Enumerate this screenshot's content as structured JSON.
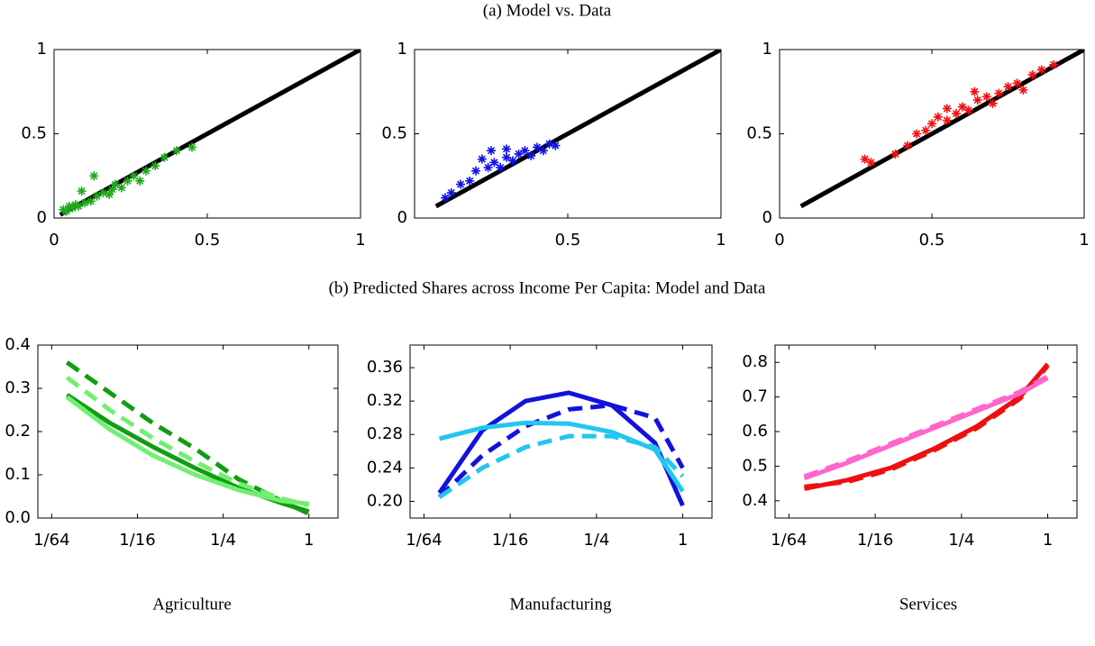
{
  "section_titles": [
    "(a) Model vs. Data",
    "(b) Predicted Shares across Income Per Capita: Model and Data"
  ],
  "panel_labels": [
    "Agriculture",
    "Manufacturing",
    "Services"
  ],
  "chart_data": [
    {
      "type": "scatter",
      "xlim": [
        0,
        1
      ],
      "ylim": [
        0,
        1
      ],
      "xticks": [
        0,
        0.5,
        1
      ],
      "yticks": [
        0,
        0.5,
        1
      ],
      "series": [
        {
          "type": "line",
          "color": "#000000",
          "x": [
            0.02,
            1
          ],
          "values": [
            0.02,
            1
          ]
        },
        {
          "type": "scatter",
          "color": "#1daa1d",
          "x": [
            0.03,
            0.04,
            0.05,
            0.06,
            0.07,
            0.08,
            0.1,
            0.12,
            0.13,
            0.14,
            0.16,
            0.18,
            0.2,
            0.22,
            0.24,
            0.26,
            0.28,
            0.3,
            0.33,
            0.36,
            0.4,
            0.45,
            0.09,
            0.19
          ],
          "values": [
            0.05,
            0.04,
            0.07,
            0.06,
            0.08,
            0.07,
            0.09,
            0.1,
            0.25,
            0.13,
            0.15,
            0.14,
            0.2,
            0.18,
            0.22,
            0.25,
            0.22,
            0.28,
            0.31,
            0.36,
            0.4,
            0.42,
            0.16,
            0.17
          ]
        }
      ]
    },
    {
      "type": "scatter",
      "xlim": [
        0,
        1
      ],
      "ylim": [
        0,
        1
      ],
      "xticks": [
        0.5,
        1
      ],
      "yticks": [
        0,
        0.5,
        1
      ],
      "series": [
        {
          "type": "line",
          "color": "#000000",
          "x": [
            0.07,
            1
          ],
          "values": [
            0.07,
            1
          ]
        },
        {
          "type": "scatter",
          "color": "#1010ee",
          "x": [
            0.1,
            0.12,
            0.15,
            0.18,
            0.2,
            0.22,
            0.24,
            0.26,
            0.28,
            0.3,
            0.32,
            0.34,
            0.36,
            0.38,
            0.4,
            0.42,
            0.44,
            0.46,
            0.25,
            0.3
          ],
          "values": [
            0.12,
            0.15,
            0.2,
            0.22,
            0.28,
            0.35,
            0.3,
            0.33,
            0.3,
            0.36,
            0.34,
            0.38,
            0.4,
            0.37,
            0.42,
            0.4,
            0.44,
            0.43,
            0.4,
            0.41
          ]
        }
      ]
    },
    {
      "type": "scatter",
      "xlim": [
        0,
        1
      ],
      "ylim": [
        0,
        1
      ],
      "xticks": [
        0,
        0.5,
        1
      ],
      "yticks": [
        0,
        0.5,
        1
      ],
      "series": [
        {
          "type": "line",
          "color": "#000000",
          "x": [
            0.07,
            1
          ],
          "values": [
            0.07,
            1
          ]
        },
        {
          "type": "scatter",
          "color": "#f41010",
          "x": [
            0.28,
            0.3,
            0.38,
            0.42,
            0.45,
            0.48,
            0.5,
            0.52,
            0.55,
            0.58,
            0.6,
            0.62,
            0.65,
            0.68,
            0.7,
            0.72,
            0.75,
            0.78,
            0.8,
            0.83,
            0.86,
            0.9,
            0.55,
            0.64
          ],
          "values": [
            0.35,
            0.33,
            0.38,
            0.43,
            0.5,
            0.52,
            0.56,
            0.6,
            0.58,
            0.62,
            0.66,
            0.64,
            0.7,
            0.72,
            0.68,
            0.74,
            0.78,
            0.8,
            0.76,
            0.85,
            0.88,
            0.91,
            0.65,
            0.75
          ]
        }
      ]
    },
    {
      "type": "line",
      "xscale": "log",
      "xlim": [
        0.0125,
        1.6
      ],
      "ylim": [
        0,
        0.4
      ],
      "xticks": [
        {
          "value": 0.015625,
          "label": "1/64"
        },
        {
          "value": 0.0625,
          "label": "1/16"
        },
        {
          "value": 0.25,
          "label": "1/4"
        },
        1
      ],
      "yticks": [
        {
          "value": 0,
          "label": "0.0"
        },
        0.1,
        0.2,
        0.3,
        0.4
      ],
      "series": [
        {
          "color": "#109e10",
          "dash": true,
          "x": [
            0.02,
            0.04,
            0.08,
            0.16,
            0.32,
            0.64,
            1
          ],
          "values": [
            0.36,
            0.29,
            0.22,
            0.16,
            0.09,
            0.04,
            0.01
          ]
        },
        {
          "color": "#109e10",
          "dash": false,
          "x": [
            0.02,
            0.04,
            0.08,
            0.16,
            0.32,
            0.64,
            1
          ],
          "values": [
            0.285,
            0.22,
            0.165,
            0.115,
            0.07,
            0.035,
            0.015
          ]
        },
        {
          "color": "#72ef72",
          "dash": false,
          "x": [
            0.02,
            0.04,
            0.08,
            0.16,
            0.32,
            0.64,
            1
          ],
          "values": [
            0.28,
            0.205,
            0.145,
            0.1,
            0.065,
            0.04,
            0.033
          ]
        },
        {
          "color": "#72ef72",
          "dash": true,
          "x": [
            0.02,
            0.04,
            0.08,
            0.16,
            0.32,
            0.64,
            1
          ],
          "values": [
            0.325,
            0.25,
            0.185,
            0.13,
            0.08,
            0.045,
            0.03
          ]
        }
      ]
    },
    {
      "type": "line",
      "xscale": "log",
      "xlim": [
        0.0125,
        1.6
      ],
      "ylim": [
        0.18,
        0.387
      ],
      "xticks": [
        {
          "value": 0.015625,
          "label": "1/64"
        },
        {
          "value": 0.0625,
          "label": "1/16"
        },
        {
          "value": 0.25,
          "label": "1/4"
        },
        1
      ],
      "yticks": [
        {
          "value": 0.2,
          "label": "0.20"
        },
        0.24,
        0.28,
        0.32,
        0.36
      ],
      "series": [
        {
          "color": "#1212dd",
          "dash": false,
          "x": [
            0.02,
            0.04,
            0.08,
            0.16,
            0.32,
            0.64,
            1
          ],
          "values": [
            0.21,
            0.285,
            0.32,
            0.33,
            0.315,
            0.27,
            0.195
          ]
        },
        {
          "color": "#1212dd",
          "dash": true,
          "x": [
            0.02,
            0.04,
            0.08,
            0.16,
            0.32,
            0.64,
            1
          ],
          "values": [
            0.205,
            0.255,
            0.29,
            0.31,
            0.315,
            0.3,
            0.24
          ]
        },
        {
          "color": "#22c6f0",
          "dash": false,
          "x": [
            0.02,
            0.04,
            0.08,
            0.16,
            0.32,
            0.64,
            1
          ],
          "values": [
            0.275,
            0.288,
            0.294,
            0.293,
            0.283,
            0.262,
            0.212
          ]
        },
        {
          "color": "#22c6f0",
          "dash": true,
          "x": [
            0.02,
            0.04,
            0.08,
            0.16,
            0.32,
            0.64,
            1
          ],
          "values": [
            0.205,
            0.24,
            0.265,
            0.278,
            0.278,
            0.265,
            0.23
          ]
        }
      ]
    },
    {
      "type": "line",
      "xscale": "log",
      "xlim": [
        0.0125,
        1.6
      ],
      "ylim": [
        0.35,
        0.85
      ],
      "xticks": [
        {
          "value": 0.015625,
          "label": "1/64"
        },
        {
          "value": 0.0625,
          "label": "1/16"
        },
        {
          "value": 0.25,
          "label": "1/4"
        },
        1
      ],
      "yticks": [
        0.4,
        0.5,
        0.6,
        0.7,
        0.8
      ],
      "series": [
        {
          "color": "#ee1010",
          "dash": false,
          "x": [
            0.02,
            0.04,
            0.08,
            0.16,
            0.32,
            0.64,
            1
          ],
          "values": [
            0.435,
            0.46,
            0.495,
            0.55,
            0.615,
            0.7,
            0.795
          ]
        },
        {
          "color": "#ee1010",
          "dash": true,
          "x": [
            0.02,
            0.04,
            0.08,
            0.16,
            0.32,
            0.64,
            1
          ],
          "values": [
            0.44,
            0.455,
            0.49,
            0.545,
            0.61,
            0.695,
            0.79
          ]
        },
        {
          "color": "#ff66cc",
          "dash": false,
          "x": [
            0.02,
            0.04,
            0.08,
            0.16,
            0.32,
            0.64,
            1
          ],
          "values": [
            0.465,
            0.51,
            0.56,
            0.61,
            0.66,
            0.71,
            0.755
          ]
        },
        {
          "color": "#ff66cc",
          "dash": true,
          "x": [
            0.02,
            0.04,
            0.08,
            0.16,
            0.32,
            0.64,
            1
          ],
          "values": [
            0.47,
            0.515,
            0.565,
            0.615,
            0.665,
            0.715,
            0.76
          ]
        }
      ]
    }
  ]
}
